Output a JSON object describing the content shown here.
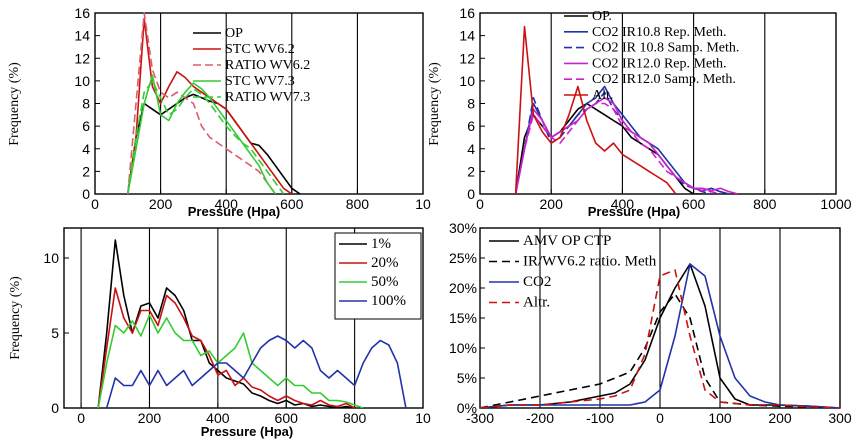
{
  "chart_data": [
    {
      "type": "line",
      "xlabel": "Pressure (Hpa)",
      "ylabel": "Frequency (%)",
      "xlim": [
        0,
        1000
      ],
      "ylim": [
        0,
        16
      ],
      "xticks": [
        "0",
        "200",
        "400",
        "600",
        "800",
        "10"
      ],
      "yticks": [
        "0",
        "2",
        "4",
        "6",
        "8",
        "10",
        "12",
        "14",
        "16"
      ],
      "grid": "vertical",
      "legend": "top-center",
      "series": [
        {
          "name": "OP",
          "color": "#000000",
          "dash": "",
          "x": [
            100,
            125,
            150,
            175,
            200,
            225,
            250,
            275,
            300,
            325,
            350,
            375,
            400,
            425,
            450,
            475,
            500,
            525,
            550,
            575,
            600,
            625
          ],
          "y": [
            0,
            5,
            8,
            7.5,
            7,
            7.5,
            8,
            8.5,
            8.8,
            8.5,
            8.2,
            8,
            7.5,
            6.5,
            5.5,
            4.5,
            4.3,
            3.5,
            2.5,
            1.5,
            0.5,
            0
          ]
        },
        {
          "name": "STC WV6.2",
          "color": "#cc1111",
          "dash": "",
          "x": [
            100,
            125,
            150,
            175,
            200,
            225,
            250,
            275,
            300,
            325,
            350,
            375,
            400,
            425,
            450,
            475,
            500,
            525,
            550,
            575,
            600
          ],
          "y": [
            0,
            5,
            15.5,
            9.5,
            8,
            9.5,
            10.8,
            10.3,
            9.5,
            9,
            8.5,
            8,
            7.5,
            6.5,
            5.5,
            4.5,
            3.5,
            2.5,
            1.5,
            0.5,
            0
          ]
        },
        {
          "name": "RATIO WV6.2",
          "color": "#e05a6a",
          "dash": "8,4",
          "x": [
            100,
            125,
            150,
            175,
            200,
            225,
            250,
            275,
            300,
            325,
            350,
            375,
            400,
            425,
            450,
            475,
            500,
            525,
            550
          ],
          "y": [
            0,
            8,
            16,
            11,
            9,
            8.5,
            9,
            8.5,
            8,
            6,
            5,
            4.5,
            4,
            3.5,
            3,
            2.5,
            2,
            1,
            0
          ]
        },
        {
          "name": "STC WV7.3",
          "color": "#33cc33",
          "dash": "",
          "x": [
            100,
            125,
            150,
            175,
            200,
            225,
            250,
            275,
            300,
            325,
            350,
            375,
            400,
            425,
            450,
            475,
            500,
            525,
            550
          ],
          "y": [
            0,
            4,
            8,
            10.5,
            7,
            6.5,
            8,
            9,
            9.8,
            9.3,
            8.5,
            7.5,
            6.5,
            5.5,
            4.5,
            3.5,
            2.5,
            1,
            0
          ]
        },
        {
          "name": "RATIO WV7.3",
          "color": "#33cc33",
          "dash": "8,4",
          "x": [
            100,
            125,
            150,
            175,
            200,
            225,
            250,
            275,
            300,
            325,
            350,
            375,
            400,
            425,
            450,
            475,
            500,
            525,
            550,
            575
          ],
          "y": [
            0,
            5,
            9,
            10,
            8.5,
            7,
            7.5,
            8.5,
            9.3,
            8.8,
            8,
            7,
            6,
            5.2,
            4.5,
            4,
            3,
            2,
            1,
            0
          ]
        }
      ]
    },
    {
      "type": "line",
      "xlabel": "Pressure (Hpa)",
      "ylabel": "Frequency (%)",
      "xlim": [
        0,
        1000
      ],
      "ylim": [
        0,
        16
      ],
      "xticks": [
        "0",
        "200",
        "400",
        "600",
        "800",
        "1000"
      ],
      "yticks": [
        "0",
        "2",
        "4",
        "6",
        "8",
        "10",
        "12",
        "14",
        "16"
      ],
      "grid": "vertical",
      "legend": "top-center",
      "series": [
        {
          "name": "OP.",
          "color": "#000000",
          "dash": "",
          "x": [
            100,
            125,
            150,
            175,
            200,
            225,
            250,
            275,
            300,
            325,
            350,
            375,
            400,
            425,
            450,
            475,
            500,
            525,
            550,
            575,
            600,
            625
          ],
          "y": [
            0,
            5,
            7,
            6,
            5,
            5.5,
            6.5,
            7.5,
            8,
            7.5,
            7,
            6.5,
            6,
            5,
            4.5,
            4,
            3.5,
            2.5,
            1.5,
            0.5,
            0,
            0
          ]
        },
        {
          "name": "CO2 IR10.8 Rep. Meth.",
          "color": "#2233aa",
          "dash": "",
          "x": [
            100,
            125,
            150,
            175,
            200,
            225,
            250,
            275,
            300,
            325,
            350,
            375,
            400,
            425,
            450,
            475,
            500,
            525,
            550,
            575,
            600,
            625,
            650,
            675,
            700
          ],
          "y": [
            0,
            4,
            8,
            6.5,
            5,
            5.5,
            6,
            7,
            8,
            8.5,
            9.5,
            8,
            7,
            6,
            5,
            4.5,
            4,
            3,
            2,
            1,
            0.5,
            0.3,
            0.5,
            0.2,
            0
          ]
        },
        {
          "name": "CO2 IR 10.8 Samp. Meth.",
          "color": "#2233aa",
          "dash": "8,4",
          "x": [
            100,
            125,
            150,
            175,
            200,
            225,
            250,
            275,
            300,
            325,
            350,
            375,
            400,
            425,
            450,
            475,
            500,
            525,
            550,
            575,
            600,
            625,
            650
          ],
          "y": [
            0,
            4,
            8.5,
            6.5,
            4.5,
            5,
            6,
            7,
            7.5,
            8,
            9,
            7.5,
            6.5,
            5.5,
            5,
            4.5,
            3.5,
            2.5,
            1.5,
            0.8,
            0.5,
            0.2,
            0
          ]
        },
        {
          "name": "CO2 IR12.0 Rep. Meth.",
          "color": "#cc22cc",
          "dash": "",
          "x": [
            100,
            125,
            150,
            175,
            200,
            225,
            250,
            275,
            300,
            325,
            350,
            375,
            400,
            425,
            450,
            475,
            500,
            525,
            550,
            575,
            600,
            625,
            650,
            675,
            700,
            725
          ],
          "y": [
            0,
            4,
            7.5,
            6.5,
            5,
            5.5,
            6,
            6.5,
            7.5,
            8,
            8.5,
            8,
            6.5,
            5.5,
            5,
            4.5,
            3.5,
            2.5,
            1.5,
            1,
            0.5,
            0.5,
            0.3,
            0.5,
            0.2,
            0
          ]
        },
        {
          "name": "CO2 IR12.0 Samp. Meth.",
          "color": "#cc22cc",
          "dash": "8,4",
          "x": [
            100,
            125,
            150,
            175,
            200,
            225,
            250,
            275,
            300,
            325,
            350,
            375,
            400,
            425,
            450,
            475,
            500,
            525,
            550,
            575,
            600,
            625,
            650,
            675
          ],
          "y": [
            0,
            4,
            7,
            6,
            5,
            4.5,
            5.5,
            6.5,
            7.5,
            8,
            8,
            7.5,
            6,
            5.5,
            4.5,
            4,
            3,
            2,
            1.5,
            1,
            0.5,
            0.3,
            0.2,
            0
          ]
        },
        {
          "name": "Alt.",
          "color": "#cc1111",
          "dash": "",
          "x": [
            100,
            125,
            150,
            175,
            200,
            225,
            250,
            275,
            300,
            325,
            350,
            375,
            400,
            425,
            450,
            475,
            500,
            525,
            550
          ],
          "y": [
            0,
            14.8,
            7,
            5.5,
            4.5,
            5,
            7,
            9.5,
            6.5,
            4.5,
            3.8,
            4.5,
            3.5,
            3,
            2.5,
            2,
            1.5,
            1,
            0
          ]
        }
      ]
    },
    {
      "type": "line",
      "xlabel": "Pressure (Hpa)",
      "ylabel": "Frequency (%)",
      "xlim": [
        -50,
        1000
      ],
      "ylim": [
        0,
        12
      ],
      "xticks": [
        "0",
        "200",
        "400",
        "600",
        "800",
        "10"
      ],
      "yticks": [
        "0",
        "5",
        "10"
      ],
      "grid": "vertical",
      "legend": "top-right",
      "series": [
        {
          "name": "1%",
          "color": "#000000",
          "dash": "",
          "x": [
            50,
            75,
            100,
            125,
            150,
            175,
            200,
            225,
            250,
            275,
            300,
            325,
            350,
            375,
            400,
            425,
            450,
            475,
            500,
            525,
            550,
            575,
            600,
            625,
            650,
            675,
            700,
            725,
            750,
            775,
            800
          ],
          "y": [
            0,
            5,
            11.2,
            7.5,
            5,
            6.8,
            7,
            6,
            8,
            7.5,
            6.5,
            4.5,
            4.5,
            3,
            2.5,
            2,
            1.8,
            1.6,
            1,
            0.8,
            0.5,
            0.3,
            0.5,
            0.2,
            0.3,
            0.1,
            0.2,
            0.1,
            0,
            0.1,
            0
          ]
        },
        {
          "name": "20%",
          "color": "#cc1111",
          "dash": "",
          "x": [
            50,
            75,
            100,
            125,
            150,
            175,
            200,
            225,
            250,
            275,
            300,
            325,
            350,
            375,
            400,
            425,
            450,
            475,
            500,
            525,
            550,
            575,
            600,
            625,
            650,
            675,
            700,
            725,
            750,
            775,
            800
          ],
          "y": [
            0,
            4,
            8,
            6,
            5,
            6.5,
            6.5,
            5.5,
            7.5,
            7,
            6,
            4.8,
            4.5,
            3.5,
            2.2,
            2.5,
            1.5,
            2,
            1.4,
            1.2,
            0.8,
            0.5,
            0.8,
            0.5,
            0.3,
            0.2,
            0.5,
            0.2,
            0.1,
            0.3,
            0
          ]
        },
        {
          "name": "50%",
          "color": "#33cc33",
          "dash": "",
          "x": [
            50,
            75,
            100,
            125,
            150,
            175,
            200,
            225,
            250,
            275,
            300,
            325,
            350,
            375,
            400,
            425,
            450,
            475,
            500,
            525,
            550,
            575,
            600,
            625,
            650,
            675,
            700,
            725,
            750,
            775,
            800,
            825
          ],
          "y": [
            0,
            3,
            5.5,
            5,
            5.8,
            4.8,
            6.2,
            5,
            6,
            5,
            4.5,
            4.5,
            3.5,
            3.8,
            3,
            3.5,
            4,
            5,
            3,
            2.5,
            2,
            1.5,
            2,
            1.5,
            1.5,
            1,
            1,
            0.5,
            0.5,
            0.4,
            0.2,
            0
          ]
        },
        {
          "name": "100%",
          "color": "#2233aa",
          "dash": "",
          "x": [
            75,
            100,
            125,
            150,
            175,
            200,
            225,
            250,
            275,
            300,
            325,
            350,
            375,
            400,
            425,
            450,
            475,
            500,
            525,
            550,
            575,
            600,
            625,
            650,
            675,
            700,
            725,
            750,
            775,
            800,
            825,
            850,
            875,
            900,
            925,
            950
          ],
          "y": [
            0,
            2,
            1.5,
            1.5,
            2.5,
            1.5,
            2.5,
            1.5,
            2,
            2.5,
            1.5,
            2,
            2.5,
            3,
            3,
            2.5,
            2,
            3,
            4,
            4.5,
            4.8,
            4.5,
            4,
            4.5,
            4,
            2.5,
            2,
            2.5,
            2,
            1.5,
            3,
            4,
            4.5,
            4.2,
            3,
            0
          ]
        }
      ]
    },
    {
      "type": "line",
      "xlabel": "",
      "ylabel": "",
      "xlim": [
        -300,
        300
      ],
      "ylim": [
        0,
        30
      ],
      "xticks": [
        "-300",
        "-200",
        "-100",
        "0",
        "100",
        "200",
        "300"
      ],
      "yticks": [
        "0%",
        "5%",
        "10%",
        "15%",
        "20%",
        "25%",
        "30%"
      ],
      "grid": "vertical",
      "legend": "top-left",
      "series": [
        {
          "name": "AMV OP CTP",
          "color": "#000000",
          "dash": "",
          "x": [
            -300,
            -250,
            -200,
            -150,
            -100,
            -75,
            -50,
            -25,
            0,
            25,
            50,
            75,
            100,
            125,
            150,
            200,
            250,
            300
          ],
          "y": [
            0,
            0.5,
            0.5,
            1,
            2,
            2.5,
            4,
            8,
            15,
            20,
            24,
            17,
            5,
            1.5,
            0.5,
            0.5,
            0.3,
            0
          ]
        },
        {
          "name": "IR/WV6.2 ratio. Meth",
          "color": "#000000",
          "dash": "8,5",
          "x": [
            -300,
            -250,
            -200,
            -150,
            -100,
            -50,
            -25,
            0,
            25,
            50,
            75,
            100,
            150,
            200,
            250,
            300
          ],
          "y": [
            0,
            1,
            2,
            3,
            4,
            6,
            10,
            16,
            19,
            15,
            5,
            1,
            0.5,
            0.3,
            0.2,
            0
          ]
        },
        {
          "name": "CO2",
          "color": "#2233aa",
          "dash": "",
          "x": [
            -300,
            -250,
            -200,
            -150,
            -100,
            -50,
            -25,
            0,
            25,
            50,
            75,
            100,
            125,
            150,
            175,
            200,
            250,
            300
          ],
          "y": [
            0,
            0.5,
            0.5,
            0.5,
            0.5,
            0.5,
            1,
            3,
            12,
            24,
            22,
            12,
            5,
            2,
            1,
            0.5,
            0.3,
            0
          ]
        },
        {
          "name": "Altr.",
          "color": "#cc1111",
          "dash": "8,5",
          "x": [
            -300,
            -250,
            -200,
            -150,
            -100,
            -75,
            -50,
            -25,
            0,
            25,
            50,
            75,
            100,
            150,
            200,
            250,
            300
          ],
          "y": [
            0,
            0.5,
            0.5,
            1,
            1.5,
            2,
            3,
            9,
            22,
            23,
            12,
            3,
            1,
            0.5,
            0.5,
            0.2,
            0
          ]
        }
      ]
    }
  ]
}
